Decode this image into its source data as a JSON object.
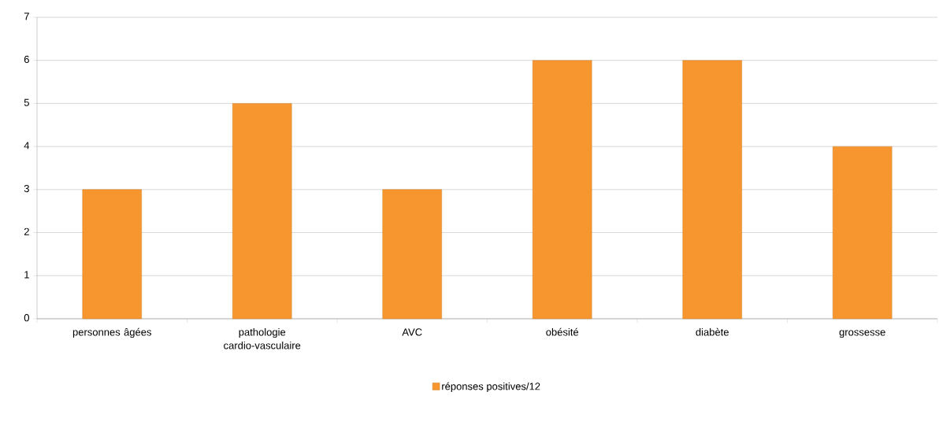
{
  "chart_data": {
    "type": "bar",
    "categories": [
      "personnes âgées",
      "pathologie cardio-vasculaire",
      "AVC",
      "obésité",
      "diabète",
      "grossesse"
    ],
    "series": [
      {
        "name": "réponses positives/12",
        "color": "#f7962f",
        "values": [
          3,
          5,
          3,
          6,
          6,
          4
        ]
      }
    ],
    "ylim": [
      0,
      7
    ],
    "yticks": [
      0,
      1,
      2,
      3,
      4,
      5,
      6,
      7
    ],
    "grid": "y",
    "legend": "bottom"
  }
}
